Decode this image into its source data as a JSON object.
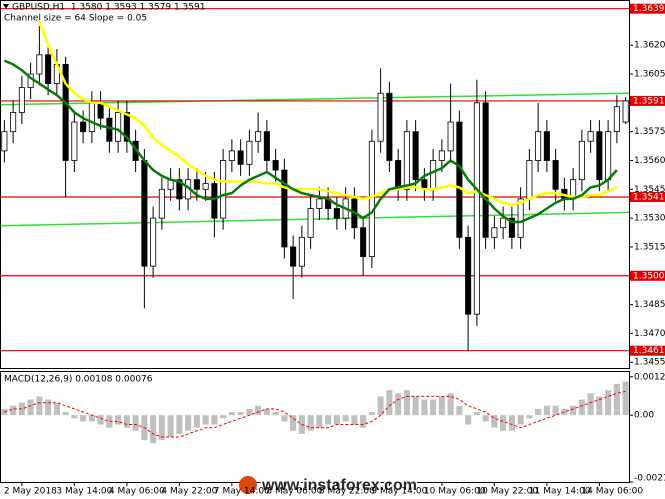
{
  "chart_data": [
    {
      "type": "candlestick",
      "title": "GBPUSD,H1  1.3580 1.3593 1.3579 1.3591",
      "subtitle": "Channel size = 64 Slope = 0.05",
      "categories": [
        null,
        null,
        "2 May 2018",
        null,
        null,
        null,
        null,
        null,
        "3 May 14:00",
        null,
        null,
        null,
        null,
        null,
        "4 May 06:00",
        null,
        null,
        null,
        null,
        null,
        "4 May 22:00",
        null,
        null,
        null,
        null,
        null,
        "7 May 14:00",
        null,
        null,
        null,
        null,
        null,
        "8 May 06:00",
        null,
        null,
        null,
        null,
        null,
        "8 May 22:00",
        null,
        null,
        null,
        null,
        null,
        "9 May 14:00",
        null,
        null,
        null,
        null,
        null,
        "10 May 06:00",
        null,
        null,
        null,
        null,
        null,
        "10 May 22:00",
        null,
        null,
        null,
        null,
        null,
        "11 May 14:00",
        null,
        null,
        null,
        null,
        null,
        "14 May 06:00",
        null,
        null,
        null
      ],
      "open": [
        1.3565,
        1.3575,
        1.3585,
        1.3598,
        1.3605,
        1.3615,
        1.36,
        1.361,
        1.356,
        1.358,
        1.3575,
        1.359,
        1.3582,
        1.357,
        1.3585,
        1.357,
        1.356,
        1.3505,
        1.353,
        1.3545,
        1.355,
        1.354,
        1.355,
        1.3545,
        1.3548,
        1.353,
        1.356,
        1.3565,
        1.3558,
        1.357,
        1.3575,
        1.356,
        1.3555,
        1.3515,
        1.3505,
        1.352,
        1.3535,
        1.354,
        1.3535,
        1.353,
        1.354,
        1.3525,
        1.351,
        1.357,
        1.3595,
        1.356,
        1.3545,
        1.3575,
        1.355,
        1.3545,
        1.356,
        1.3565,
        1.358,
        1.352,
        1.348,
        1.359,
        1.352,
        1.3525,
        1.353,
        1.352,
        1.354,
        1.356,
        1.3575,
        1.356,
        1.3545,
        1.354,
        1.355,
        1.357,
        1.3575,
        1.355,
        1.3575,
        1.358
      ],
      "high": [
        1.3581,
        1.3591,
        1.3604,
        1.3611,
        1.363,
        1.3621,
        1.3618,
        1.3614,
        1.3586,
        1.3586,
        1.3596,
        1.3596,
        1.3588,
        1.3591,
        1.3591,
        1.3576,
        1.3566,
        1.3536,
        1.3551,
        1.3556,
        1.3556,
        1.3556,
        1.3556,
        1.3554,
        1.3554,
        1.3566,
        1.3571,
        1.3571,
        1.3576,
        1.3585,
        1.3581,
        1.3566,
        1.3561,
        1.3521,
        1.3526,
        1.3541,
        1.3546,
        1.3546,
        1.3541,
        1.3546,
        1.3546,
        1.3531,
        1.3576,
        1.3608,
        1.3601,
        1.3566,
        1.3581,
        1.3581,
        1.3556,
        1.3566,
        1.3571,
        1.36,
        1.3586,
        1.3526,
        1.3602,
        1.3596,
        1.3531,
        1.3536,
        1.3536,
        1.3546,
        1.3566,
        1.359,
        1.3581,
        1.3566,
        1.3551,
        1.3556,
        1.3576,
        1.3581,
        1.3581,
        1.3581,
        1.3594,
        1.3593
      ],
      "low": [
        1.3559,
        1.3569,
        1.3579,
        1.3592,
        1.3599,
        1.3594,
        1.3594,
        1.3541,
        1.3554,
        1.3569,
        1.3569,
        1.3576,
        1.3564,
        1.3564,
        1.3564,
        1.3554,
        1.3483,
        1.3499,
        1.3524,
        1.3539,
        1.3534,
        1.3534,
        1.3539,
        1.3539,
        1.352,
        1.3524,
        1.3554,
        1.3552,
        1.3552,
        1.3564,
        1.3554,
        1.3549,
        1.3509,
        1.3488,
        1.3499,
        1.3514,
        1.3529,
        1.3529,
        1.3524,
        1.3524,
        1.3519,
        1.35,
        1.3504,
        1.3564,
        1.3554,
        1.3539,
        1.3539,
        1.3544,
        1.3539,
        1.3539,
        1.3554,
        1.3559,
        1.3514,
        1.3461,
        1.3474,
        1.3514,
        1.3514,
        1.3519,
        1.3514,
        1.3514,
        1.3534,
        1.3554,
        1.3554,
        1.3539,
        1.3534,
        1.3534,
        1.3544,
        1.3564,
        1.3544,
        1.3544,
        1.3569,
        1.3579
      ],
      "close": [
        1.3575,
        1.3585,
        1.3598,
        1.3605,
        1.3615,
        1.36,
        1.361,
        1.356,
        1.358,
        1.3575,
        1.359,
        1.3582,
        1.357,
        1.3585,
        1.357,
        1.356,
        1.3505,
        1.353,
        1.3545,
        1.355,
        1.354,
        1.355,
        1.3545,
        1.3548,
        1.353,
        1.356,
        1.3565,
        1.3558,
        1.357,
        1.3575,
        1.356,
        1.3555,
        1.3515,
        1.3505,
        1.352,
        1.3535,
        1.354,
        1.3535,
        1.353,
        1.354,
        1.3525,
        1.351,
        1.357,
        1.3595,
        1.356,
        1.3545,
        1.3575,
        1.355,
        1.3545,
        1.356,
        1.3565,
        1.358,
        1.352,
        1.348,
        1.359,
        1.352,
        1.3525,
        1.353,
        1.352,
        1.354,
        1.356,
        1.3575,
        1.356,
        1.3545,
        1.354,
        1.355,
        1.357,
        1.3575,
        1.355,
        1.3575,
        1.3588,
        1.3591
      ],
      "bull_color": "#ffffff",
      "bear_color": "#000000",
      "series": [
        {
          "color": "#ffff00",
          "values": [
            null,
            null,
            null,
            null,
            1.3632,
            1.362,
            1.361,
            1.36,
            1.3595,
            1.3592,
            1.359,
            1.359,
            1.3588,
            1.3586,
            1.3584,
            1.3582,
            1.3578,
            1.3572,
            1.3568,
            1.3565,
            1.3562,
            1.3558,
            1.3555,
            1.3552,
            1.355,
            1.3549,
            1.3549,
            1.3549,
            1.3549,
            1.3549,
            1.3548,
            1.3548,
            1.3546,
            1.3545,
            1.3545,
            1.3545,
            1.3545,
            1.3544,
            1.3543,
            1.3542,
            1.3541,
            1.354,
            1.3541,
            1.3543,
            1.3545,
            1.3545,
            1.3546,
            1.3546,
            1.3545,
            1.3545,
            1.3546,
            1.3547,
            1.3546,
            1.3543,
            1.3544,
            1.3542,
            1.354,
            1.3538,
            1.3537,
            1.3538,
            1.354,
            1.3542,
            1.3543,
            1.3543,
            1.3542,
            1.3541,
            1.3541,
            1.3542,
            1.3542,
            1.3544,
            1.3546,
            null
          ]
        },
        {
          "color": "#0a7a0a",
          "values": [
            1.3612,
            1.361,
            1.3607,
            1.3603,
            1.36,
            1.3597,
            1.3594,
            1.359,
            1.3585,
            1.3582,
            1.358,
            1.3578,
            1.3577,
            1.3576,
            1.3572,
            1.3566,
            1.356,
            1.3555,
            1.3552,
            1.355,
            1.3549,
            1.3546,
            1.3542,
            1.354,
            1.354,
            1.3542,
            1.3543,
            1.3547,
            1.355,
            1.3552,
            1.3554,
            1.3551,
            1.3548,
            1.3545,
            1.3543,
            1.3542,
            1.3541,
            1.354,
            1.3537,
            1.3535,
            1.3533,
            1.353,
            1.3533,
            1.354,
            1.3545,
            1.3546,
            1.3547,
            1.3548,
            1.3552,
            1.3554,
            1.3556,
            1.356,
            1.3557,
            1.355,
            1.3545,
            1.354,
            1.3535,
            1.3531,
            1.3528,
            1.3528,
            1.353,
            1.3532,
            1.3535,
            1.3538,
            1.354,
            1.354,
            1.3542,
            1.3546,
            1.3547,
            1.355,
            1.3555,
            null
          ]
        }
      ],
      "trend_lines": [
        {
          "color": "#33dd33",
          "start": 1.3589,
          "end": 1.3595
        },
        {
          "color": "#33dd33",
          "start": 1.3526,
          "end": 1.3533
        }
      ],
      "levels": [
        1.3639,
        1.3591,
        1.3541,
        {
          "value": 1.35,
          "label": "1.3500"
        },
        1.3461
      ],
      "level_color": "#e00000",
      "ylim": [
        1.3452,
        1.3643
      ],
      "yticks": [
        {
          "value": 1.362,
          "label": "1.3620"
        },
        1.3605,
        1.3575,
        {
          "value": 1.356,
          "label": "1.3560"
        },
        1.3545,
        {
          "value": 1.353,
          "label": "1.3530"
        },
        1.3515,
        {
          "value": 1.35,
          "label": "1.3500"
        },
        1.3485,
        {
          "value": 1.347,
          "label": "1.3470"
        },
        1.3455
      ]
    },
    {
      "type": "macd",
      "title": "MACD(12,26,9) 0.00108 0.00076",
      "series": [
        {
          "type": "bar",
          "color": "#c0c0c0",
          "values": [
            0.0002,
            0.0003,
            0.0004,
            0.0005,
            0.0006,
            0.0005,
            0.0004,
            0.0001,
            -0.0001,
            -0.0002,
            -0.0002,
            -0.0003,
            -0.0004,
            -0.0003,
            -0.0004,
            -0.0005,
            -0.0008,
            -0.0009,
            -0.0008,
            -0.0007,
            -0.0006,
            -0.0005,
            -0.0004,
            -0.0003,
            -0.0003,
            -0.0001,
            0.0001,
            0.0001,
            0.0002,
            0.0003,
            0.0002,
            0.0001,
            -0.0002,
            -0.0005,
            -0.0006,
            -0.0005,
            -0.0004,
            -0.0003,
            -0.0003,
            -0.0002,
            -0.0003,
            -0.0004,
            0.0001,
            0.0006,
            0.0008,
            0.0007,
            0.0008,
            0.0006,
            0.0005,
            0.0005,
            0.0006,
            0.0007,
            0.0003,
            -0.0003,
            0.0001,
            -0.0002,
            -0.0004,
            -0.0005,
            -0.0005,
            -0.0003,
            -0.0001,
            0.0002,
            0.0003,
            0.0003,
            0.0002,
            0.0003,
            0.0005,
            0.0007,
            0.0006,
            0.0008,
            0.001,
            0.00108
          ]
        },
        {
          "type": "line",
          "color": "#ff0000",
          "values": [
            0.0001,
            0.0002,
            0.0002,
            0.0003,
            0.0004,
            0.0004,
            0.0004,
            0.0003,
            0.0002,
            0.0001,
            0,
            -0.0001,
            -0.0002,
            -0.0002,
            -0.0003,
            -0.0003,
            -0.0004,
            -0.0006,
            -0.0007,
            -0.0007,
            -0.0007,
            -0.0006,
            -0.0005,
            -0.0004,
            -0.0004,
            -0.0003,
            -0.0002,
            -0.0001,
            0,
            0.0001,
            0.0002,
            0.0002,
            0.0001,
            -0.0001,
            -0.0003,
            -0.0004,
            -0.0004,
            -0.0004,
            -0.0003,
            -0.0003,
            -0.0003,
            -0.0003,
            -0.0002,
            0,
            0.0003,
            0.0005,
            0.0006,
            0.0006,
            0.0006,
            0.0006,
            0.0006,
            0.0006,
            0.0005,
            0.0003,
            0.0002,
            0.0001,
            -0.0001,
            -0.0002,
            -0.0003,
            -0.0004,
            -0.0003,
            -0.0002,
            -0.0001,
            0,
            0.0001,
            0.0002,
            0.0003,
            0.0004,
            0.0005,
            0.0006,
            0.0007,
            0.00076
          ]
        }
      ],
      "ylim": [
        -0.00214,
        0.00135
      ],
      "yticks": [
        0.00123,
        {
          "value": 0,
          "label": "0.00"
        },
        -0.00214
      ]
    }
  ],
  "watermark": "www.instaforex.com"
}
